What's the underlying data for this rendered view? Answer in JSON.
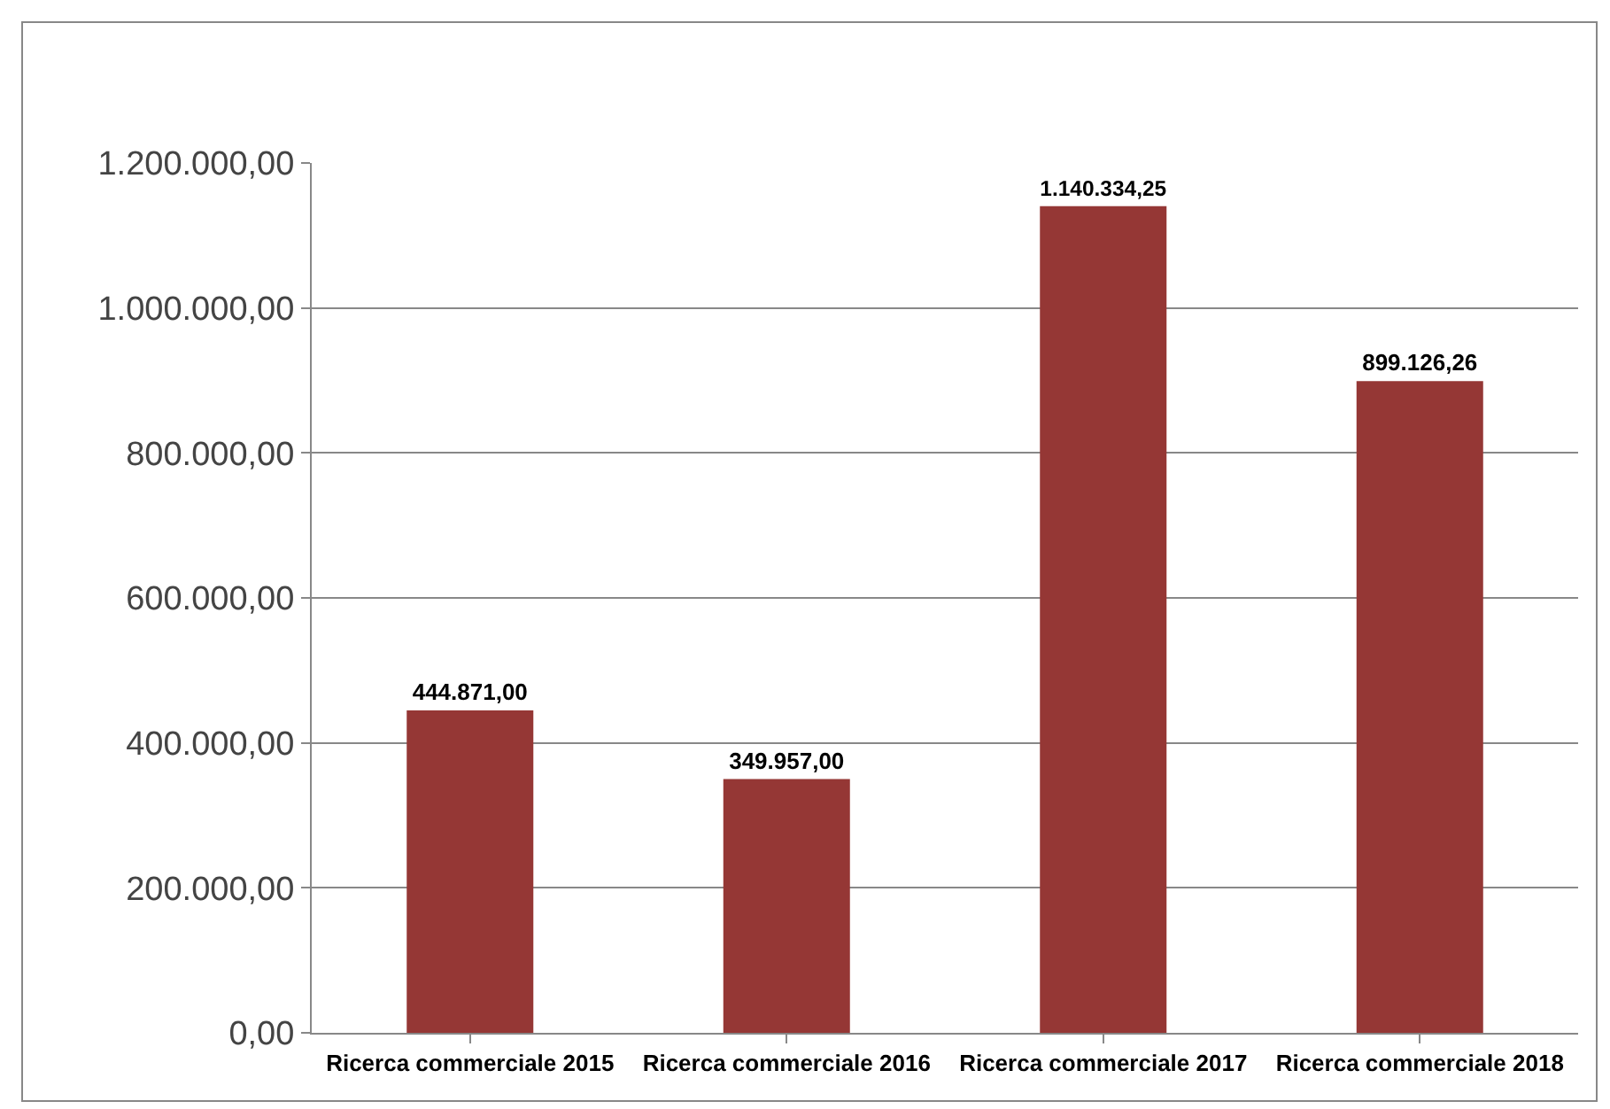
{
  "chart_data": {
    "type": "bar",
    "categories": [
      "Ricerca commerciale 2015",
      "Ricerca commerciale 2016",
      "Ricerca commerciale 2017",
      "Ricerca commerciale 2018"
    ],
    "values": [
      444871,
      349957,
      1140334.25,
      899126.26
    ],
    "value_labels": [
      "444.871,00",
      "349.957,00",
      "1.140.334,25",
      "899.126,26"
    ],
    "color": "#953735",
    "ylim": [
      0,
      1200000
    ],
    "yticks": [
      {
        "value": 0,
        "label": "0,00"
      },
      {
        "value": 200000,
        "label": "200.000,00"
      },
      {
        "value": 400000,
        "label": "400.000,00"
      },
      {
        "value": 600000,
        "label": "600.000,00"
      },
      {
        "value": 800000,
        "label": "800.000,00"
      },
      {
        "value": 1000000,
        "label": "1.000.000,00"
      },
      {
        "value": 1200000,
        "label": "1.200.000,00"
      }
    ],
    "grid": "y",
    "legend": false
  }
}
